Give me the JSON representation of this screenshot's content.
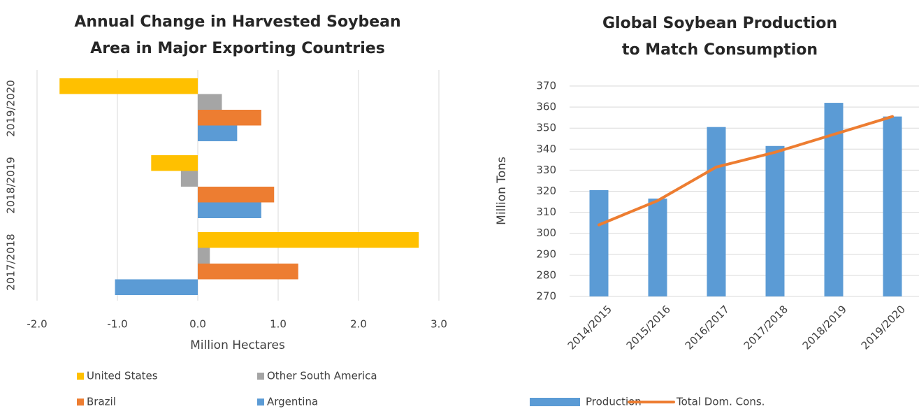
{
  "chart_data": [
    {
      "type": "hbar",
      "title": [
        "Annual Change in Harvested Soybean",
        "Area in Major Exporting Countries"
      ],
      "x_label": "Million Hectares",
      "categories": [
        "2017/2018",
        "2018/2019",
        "2019/2020"
      ],
      "series": [
        {
          "name": "United States",
          "color": "#ffc000",
          "values": [
            2.75,
            -0.58,
            -1.72
          ]
        },
        {
          "name": "Other South America",
          "color": "#a5a5a5",
          "values": [
            0.15,
            -0.21,
            0.3
          ]
        },
        {
          "name": "Brazil",
          "color": "#ed7d31",
          "values": [
            1.25,
            0.95,
            0.79
          ]
        },
        {
          "name": "Argentina",
          "color": "#5b9bd5",
          "values": [
            -1.03,
            0.79,
            0.49
          ]
        }
      ],
      "xlim": [
        -2,
        3
      ],
      "xticks": [
        {
          "value": -2,
          "label": "-2.0"
        },
        {
          "value": -1,
          "label": "-1.0"
        },
        {
          "value": 0,
          "label": "0.0"
        },
        {
          "value": 1,
          "label": "1.0"
        },
        {
          "value": 2,
          "label": "2.0"
        },
        {
          "value": 3,
          "label": "3.0"
        }
      ],
      "grid": true
    },
    {
      "type": "bar_line",
      "title": [
        "Global Soybean Production",
        "to Match Consumption"
      ],
      "y_label": "Million Tons",
      "categories": [
        "2014/2015",
        "2015/2016",
        "2016/2017",
        "2017/2018",
        "2018/2019",
        "2019/2020"
      ],
      "series": [
        {
          "name": "Production",
          "color": "#5b9bd5",
          "type": "bar",
          "values": [
            320.5,
            316.5,
            350.5,
            341.5,
            362,
            355.5
          ]
        },
        {
          "name": "Total Dom. Cons.",
          "color": "#ed7d31",
          "type": "line",
          "values": [
            304,
            315.5,
            331.5,
            338.5,
            347,
            355.5
          ]
        }
      ],
      "ylim": [
        270,
        370
      ],
      "yticks": [
        270,
        280,
        290,
        300,
        310,
        320,
        330,
        340,
        350,
        360,
        370
      ],
      "grid": true
    }
  ]
}
